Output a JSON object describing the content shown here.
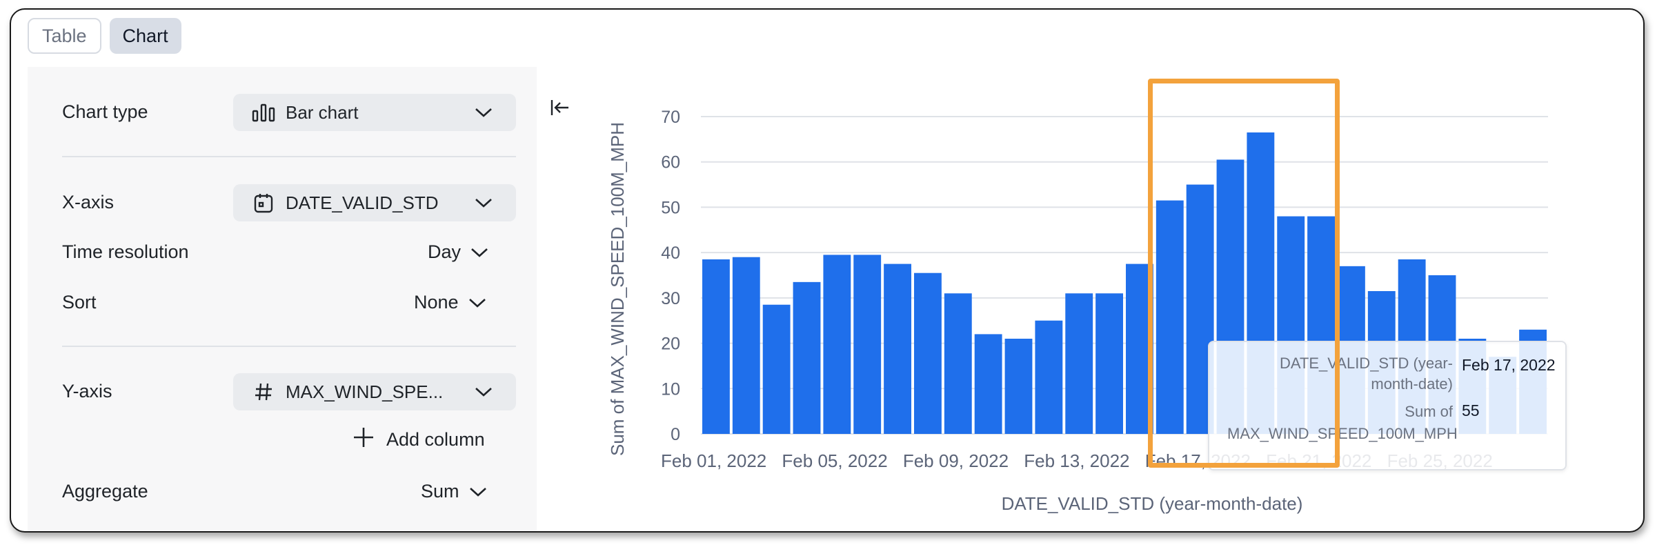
{
  "view_toggle": {
    "table_label": "Table",
    "chart_label": "Chart",
    "active": "Chart"
  },
  "settings": {
    "chart_type": {
      "label": "Chart type",
      "value": "Bar chart",
      "icon": "bar-chart-icon"
    },
    "x_axis": {
      "label": "X-axis",
      "value": "DATE_VALID_STD",
      "icon": "calendar-icon"
    },
    "time_resolution": {
      "label": "Time resolution",
      "value": "Day"
    },
    "sort": {
      "label": "Sort",
      "value": "None"
    },
    "y_axis": {
      "label": "Y-axis",
      "value": "MAX_WIND_SPE...",
      "icon": "hash-icon"
    },
    "add_column": {
      "label": "Add column"
    },
    "aggregate": {
      "label": "Aggregate",
      "value": "Sum"
    }
  },
  "tooltip": {
    "date_key": "DATE_VALID_STD (year-month-date)",
    "date_key_line1": "DATE_VALID_STD (year-",
    "date_key_line2": "month-date)",
    "date_value": "Feb 17, 2022",
    "sum_key_line1": "Sum of",
    "sum_key_line2": "MAX_WIND_SPEED_100M_MPH",
    "sum_value": "55"
  },
  "colors": {
    "bar": "#1f6feb",
    "highlight": "#f3a23c",
    "grid": "#dfe2e7",
    "axis_text": "#5b6478"
  },
  "chart_data": {
    "type": "bar",
    "xlabel": "DATE_VALID_STD (year-month-date)",
    "ylabel": "Sum of MAX_WIND_SPEED_100M_MPH",
    "ylim": [
      0,
      70
    ],
    "yticks": [
      0,
      10,
      20,
      30,
      40,
      50,
      60,
      70
    ],
    "grid": true,
    "x_tick_labels": [
      "Feb 01, 2022",
      "Feb 05, 2022",
      "Feb 09, 2022",
      "Feb 13, 2022",
      "Feb 17, 2022",
      "Feb 21, 2022",
      "Feb 25, 2022"
    ],
    "categories": [
      "Feb 01, 2022",
      "Feb 02, 2022",
      "Feb 03, 2022",
      "Feb 04, 2022",
      "Feb 05, 2022",
      "Feb 06, 2022",
      "Feb 07, 2022",
      "Feb 08, 2022",
      "Feb 09, 2022",
      "Feb 10, 2022",
      "Feb 11, 2022",
      "Feb 12, 2022",
      "Feb 13, 2022",
      "Feb 14, 2022",
      "Feb 15, 2022",
      "Feb 16, 2022",
      "Feb 17, 2022",
      "Feb 18, 2022",
      "Feb 19, 2022",
      "Feb 20, 2022",
      "Feb 21, 2022",
      "Feb 22, 2022",
      "Feb 23, 2022",
      "Feb 24, 2022",
      "Feb 25, 2022",
      "Feb 26, 2022",
      "Feb 27, 2022",
      "Feb 28, 2022"
    ],
    "values": [
      38.5,
      39,
      28.5,
      33.5,
      39.5,
      39.5,
      37.5,
      35.5,
      31,
      22,
      21,
      25,
      31,
      31,
      37.5,
      51.5,
      55,
      60.5,
      66.5,
      48,
      48,
      37,
      31.5,
      38.5,
      35,
      21,
      17,
      23
    ]
  }
}
